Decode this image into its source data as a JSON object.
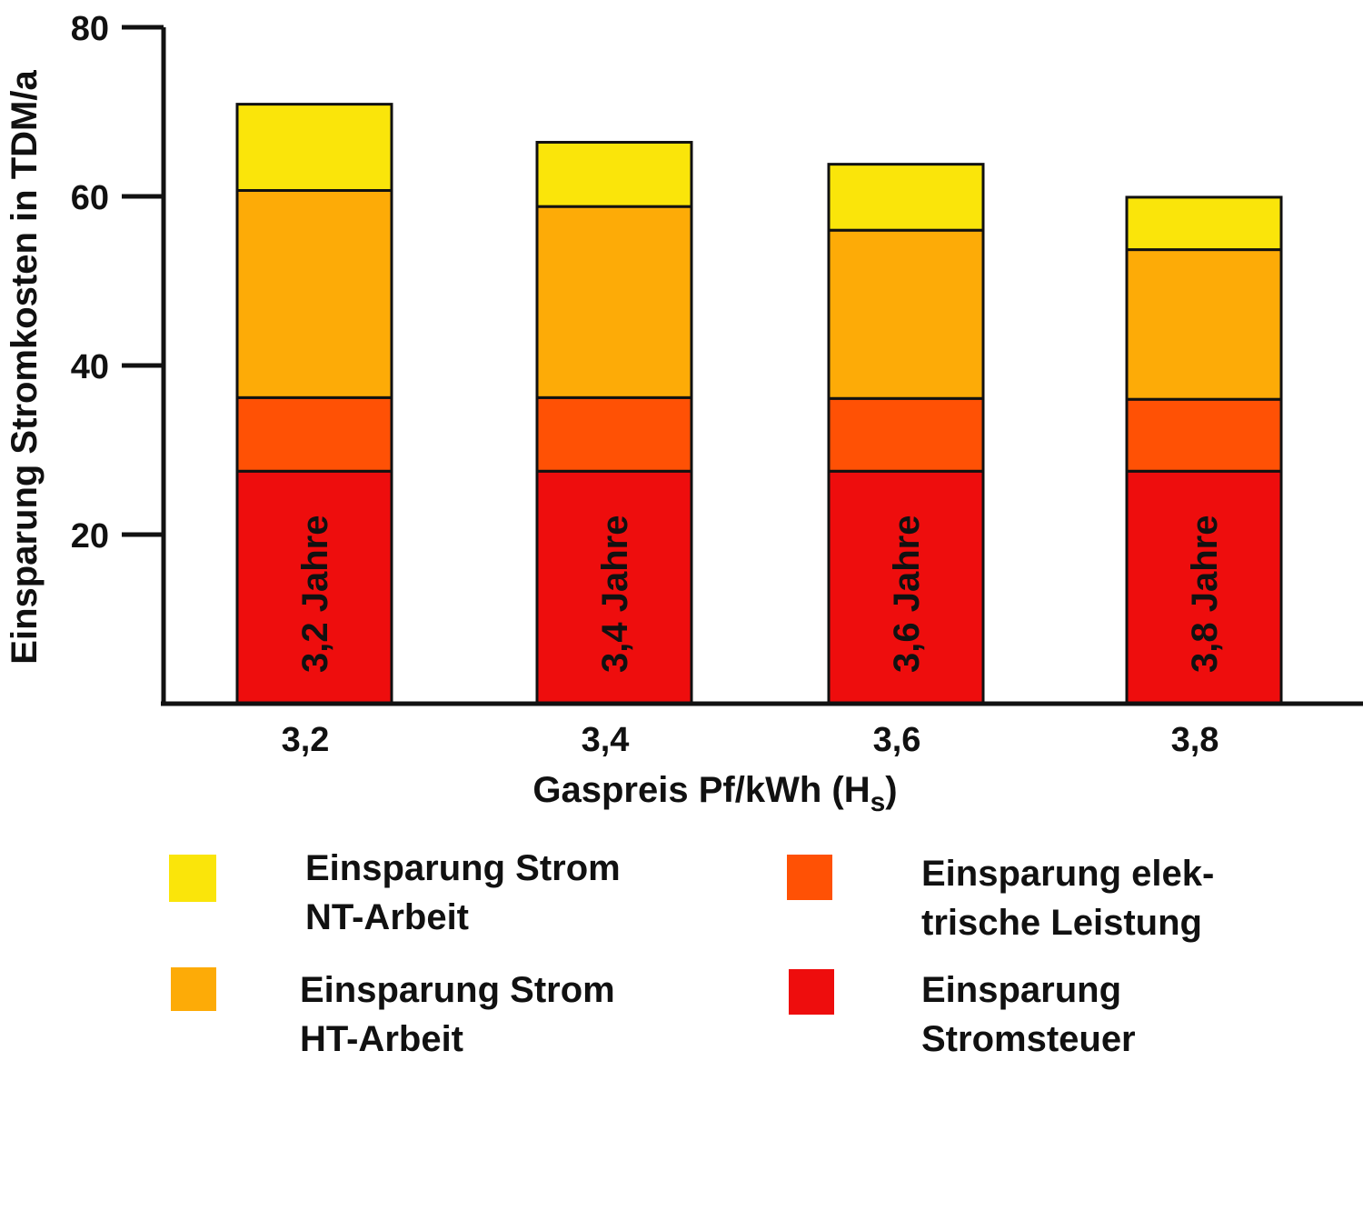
{
  "chart_data": {
    "type": "bar",
    "stacked": true,
    "categories": [
      "3,2",
      "3,4",
      "3,6",
      "3,8"
    ],
    "xlabel": "Gaspreis Pf/kWh (H",
    "xlabel_sub": "s",
    "xlabel_end": ")",
    "ylabel": "Einsparung Stromkosten in TDM/a",
    "ylim": [
      0,
      80
    ],
    "yticks": [
      20,
      40,
      60,
      80
    ],
    "grid": false,
    "bar_labels": [
      "3,2 Jahre",
      "3,4 Jahre",
      "3,6 Jahre",
      "3,8 Jahre"
    ],
    "series": [
      {
        "name": "Einsparung Stromsteuer",
        "legend_lines": [
          "Einsparung",
          "Stromsteuer"
        ],
        "color": "#ee0d0d",
        "values": [
          27.5,
          27.5,
          27.5,
          27.5
        ]
      },
      {
        "name": "Einsparung elektrische Leistung",
        "legend_lines": [
          "Einsparung elek-",
          "trische Leistung"
        ],
        "color": "#ff5105",
        "values": [
          8.7,
          8.7,
          8.6,
          8.5
        ]
      },
      {
        "name": "Einsparung Strom HT-Arbeit",
        "legend_lines": [
          "Einsparung Strom",
          "HT-Arbeit"
        ],
        "color": "#fdab07",
        "values": [
          24.5,
          22.6,
          19.9,
          17.7
        ]
      },
      {
        "name": "Einsparung Strom NT-Arbeit",
        "legend_lines": [
          "Einsparung Strom",
          "NT-Arbeit"
        ],
        "color": "#fae50a",
        "values": [
          10.2,
          7.6,
          7.8,
          6.2
        ]
      }
    ],
    "legend_position": "bottom"
  }
}
